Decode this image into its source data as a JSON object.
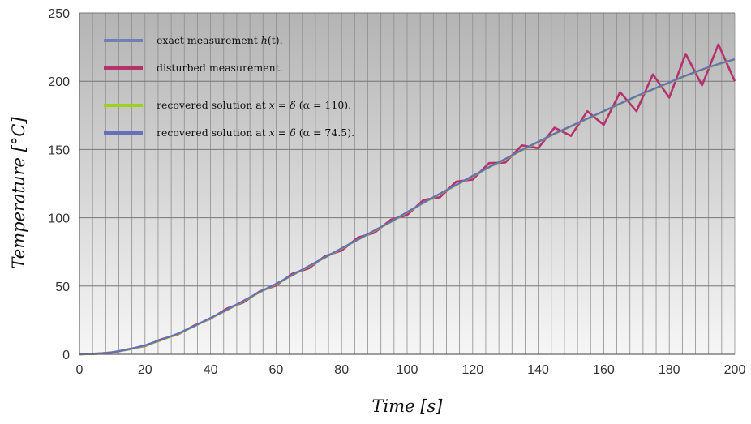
{
  "chart_data": {
    "type": "line",
    "xlabel": "Time [s]",
    "ylabel": "Temperature [°C]",
    "xlim": [
      0,
      200
    ],
    "ylim": [
      0,
      250
    ],
    "xticks": [
      0,
      20,
      40,
      60,
      80,
      100,
      120,
      140,
      160,
      180,
      200
    ],
    "yticks": [
      0,
      50,
      100,
      150,
      200,
      250
    ],
    "grid": true,
    "legend_position": "top-left",
    "background": "gray-gradient",
    "series": [
      {
        "name": "exact measurement h(t).",
        "color": "#6e82b8",
        "x": [
          0,
          5,
          10,
          15,
          20,
          25,
          30,
          35,
          40,
          45,
          50,
          55,
          60,
          65,
          70,
          75,
          80,
          85,
          90,
          95,
          100,
          105,
          110,
          115,
          120,
          125,
          130,
          135,
          140,
          145,
          150,
          155,
          160,
          165,
          170,
          175,
          180,
          185,
          190,
          195,
          200
        ],
        "y": [
          0,
          0.3,
          1.5,
          3.5,
          6.5,
          10.5,
          15,
          20.5,
          26.5,
          32.5,
          39,
          45.5,
          51.5,
          58,
          64.5,
          71,
          77.5,
          84,
          90.5,
          97,
          104,
          111,
          117.5,
          124,
          130.5,
          137,
          143,
          149.5,
          155.5,
          161.5,
          167,
          172.5,
          178,
          183.5,
          189,
          194,
          199,
          204,
          208.5,
          212.5,
          216
        ]
      },
      {
        "name": "disturbed measurement.",
        "color": "#b5336a",
        "x": [
          0,
          5,
          10,
          15,
          20,
          25,
          30,
          35,
          40,
          45,
          50,
          55,
          60,
          65,
          70,
          75,
          80,
          85,
          90,
          95,
          100,
          105,
          110,
          115,
          120,
          125,
          130,
          135,
          140,
          145,
          150,
          155,
          160,
          165,
          170,
          175,
          180,
          185,
          190,
          195,
          200
        ],
        "y": [
          0,
          0.5,
          1.2,
          3.8,
          6,
          11,
          14.5,
          21,
          26,
          33.5,
          38,
          46,
          50.5,
          59,
          63,
          72,
          76,
          85.5,
          89,
          98.5,
          102,
          113,
          115,
          126.5,
          128,
          140,
          140.5,
          153,
          151,
          166,
          160,
          178,
          168,
          192,
          178,
          205,
          188,
          220,
          197,
          227,
          200
        ]
      },
      {
        "name": "recovered solution at x = δ (α = 110).",
        "color": "#9cd21a",
        "x": [
          0,
          5,
          10,
          15,
          20,
          25,
          30,
          35,
          40,
          45,
          50,
          55,
          60,
          65,
          70,
          75,
          80,
          85,
          90,
          95,
          100,
          105,
          110,
          115,
          120,
          125,
          130,
          135,
          140,
          145,
          150,
          155,
          160,
          165,
          170,
          175,
          180,
          185,
          190,
          195,
          200
        ],
        "y": [
          0,
          0.3,
          1.4,
          3.4,
          6.3,
          10.3,
          14.8,
          20.3,
          26.3,
          32.3,
          38.8,
          45.3,
          51.3,
          57.8,
          64.3,
          70.8,
          77.3,
          83.8,
          90.3,
          96.8,
          103.8,
          110.8,
          117.3,
          123.8,
          130.3,
          136.8,
          142.8,
          149.3,
          155.3,
          161.3,
          166.8,
          172.3,
          177.8,
          183.3,
          188.8,
          193.8,
          198.8,
          203.8,
          208.3,
          212.3,
          215.8
        ]
      },
      {
        "name": "recovered solution at x = δ (α = 74.5).",
        "color": "#6670b8",
        "x": [
          0,
          5,
          10,
          15,
          20,
          25,
          30,
          35,
          40,
          45,
          50,
          55,
          60,
          65,
          70,
          75,
          80,
          85,
          90,
          95,
          100,
          105,
          110,
          115,
          120,
          125,
          130,
          135,
          140,
          145,
          150,
          155,
          160,
          165,
          170,
          175,
          180,
          185,
          190,
          195,
          200
        ],
        "y": [
          0,
          0.3,
          1.5,
          3.6,
          6.6,
          10.6,
          15.1,
          20.6,
          26.6,
          32.6,
          39.1,
          45.6,
          51.6,
          58.1,
          64.6,
          71.1,
          77.6,
          84.1,
          90.6,
          97.1,
          104.1,
          111.1,
          117.6,
          124.1,
          130.6,
          137.1,
          143.1,
          149.6,
          155.6,
          161.6,
          167.1,
          172.6,
          178.1,
          183.6,
          189.1,
          194.1,
          199.1,
          204.1,
          208.6,
          212.6,
          216.1
        ]
      }
    ],
    "legend": [
      {
        "prefix": "exact measurement ",
        "math": "h",
        "suffix": "(t)."
      },
      {
        "prefix": "disturbed measurement.",
        "math": "",
        "suffix": ""
      },
      {
        "prefix": "recovered solution at ",
        "math": "x = δ",
        "suffix": " (α = 110)."
      },
      {
        "prefix": "recovered solution at ",
        "math": "x = δ",
        "suffix": " (α = 74.5)."
      }
    ]
  }
}
